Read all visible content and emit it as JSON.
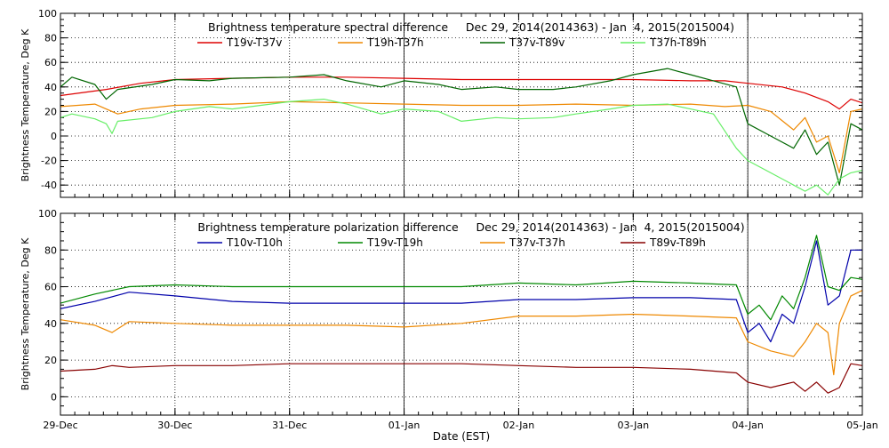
{
  "x_axis": {
    "label": "Date (EST)",
    "ticks": [
      "29-Dec",
      "30-Dec",
      "31-Dec",
      "01-Jan",
      "02-Jan",
      "03-Jan",
      "04-Jan",
      "05-Jan"
    ]
  },
  "chart_data": [
    {
      "type": "line",
      "title": "Brightness temperature spectral difference     Dec 29, 2014(2014363) - Jan  4, 2015(2015004)",
      "ylabel": "Brightness Temperature, Deg K",
      "ylim": [
        -50,
        100
      ],
      "yticks": [
        -40,
        -20,
        0,
        20,
        40,
        60,
        80,
        100
      ],
      "xlim": [
        0,
        7
      ],
      "xticks": [
        0,
        1,
        2,
        3,
        4,
        5,
        6,
        7
      ],
      "grid": true,
      "legend_placement": "top",
      "series": [
        {
          "name": "T19v-T37v",
          "color": "#dd0000",
          "x": [
            0,
            0.4,
            0.7,
            1.0,
            1.5,
            2.0,
            2.5,
            3.0,
            3.5,
            4.0,
            4.5,
            5.0,
            5.5,
            5.8,
            6.0,
            6.3,
            6.5,
            6.7,
            6.8,
            6.9,
            7.0
          ],
          "y": [
            33,
            38,
            43,
            46,
            47,
            48,
            48,
            47,
            46,
            46,
            46,
            46,
            45,
            45,
            43,
            40,
            35,
            28,
            22,
            30,
            27
          ]
        },
        {
          "name": "T19h-T37h",
          "color": "#ee8800",
          "x": [
            0,
            0.3,
            0.5,
            0.7,
            1.0,
            1.5,
            2.0,
            2.5,
            3.0,
            3.5,
            4.0,
            4.5,
            5.0,
            5.5,
            5.8,
            6.0,
            6.2,
            6.4,
            6.5,
            6.6,
            6.7,
            6.8,
            6.9,
            7.0
          ],
          "y": [
            24,
            26,
            18,
            22,
            25,
            26,
            28,
            27,
            26,
            25,
            25,
            26,
            25,
            26,
            24,
            25,
            20,
            5,
            15,
            -5,
            0,
            -30,
            20,
            22
          ]
        },
        {
          "name": "T37v-T89v",
          "color": "#006600",
          "x": [
            0,
            0.1,
            0.3,
            0.4,
            0.5,
            0.8,
            1.0,
            1.3,
            1.5,
            2.0,
            2.3,
            2.5,
            2.8,
            3.0,
            3.3,
            3.5,
            3.8,
            4.0,
            4.3,
            4.5,
            4.8,
            5.0,
            5.3,
            5.5,
            5.7,
            5.9,
            6.0,
            6.2,
            6.4,
            6.5,
            6.6,
            6.7,
            6.8,
            6.9,
            7.0
          ],
          "y": [
            40,
            48,
            42,
            30,
            38,
            42,
            46,
            45,
            47,
            48,
            50,
            45,
            40,
            45,
            42,
            38,
            40,
            38,
            38,
            40,
            45,
            50,
            55,
            50,
            45,
            40,
            10,
            0,
            -10,
            5,
            -15,
            -5,
            -40,
            10,
            5
          ]
        },
        {
          "name": "T37h-T89h",
          "color": "#66ee66",
          "x": [
            0,
            0.1,
            0.3,
            0.4,
            0.45,
            0.5,
            0.8,
            1.0,
            1.3,
            1.5,
            2.0,
            2.3,
            2.5,
            2.8,
            3.0,
            3.3,
            3.5,
            3.8,
            4.0,
            4.3,
            4.5,
            4.8,
            5.0,
            5.3,
            5.5,
            5.7,
            5.9,
            6.0,
            6.2,
            6.4,
            6.5,
            6.6,
            6.7,
            6.8,
            6.9,
            7.0
          ],
          "y": [
            15,
            18,
            14,
            10,
            2,
            12,
            15,
            20,
            24,
            22,
            28,
            30,
            26,
            18,
            22,
            20,
            12,
            15,
            14,
            15,
            18,
            22,
            25,
            26,
            22,
            18,
            -10,
            -20,
            -30,
            -40,
            -45,
            -40,
            -48,
            -35,
            -30,
            -28
          ]
        }
      ]
    },
    {
      "type": "line",
      "title": "Brightness temperature polarization difference     Dec 29, 2014(2014363) - Jan  4, 2015(2015004)",
      "ylabel": "Brightness Temperature, Deg K",
      "ylim": [
        -10,
        100
      ],
      "yticks": [
        0,
        20,
        40,
        60,
        80,
        100
      ],
      "xlim": [
        0,
        7
      ],
      "xticks": [
        0,
        1,
        2,
        3,
        4,
        5,
        6,
        7
      ],
      "grid": true,
      "legend_placement": "top",
      "series": [
        {
          "name": "T10v-T10h",
          "color": "#0000aa",
          "x": [
            0,
            0.3,
            0.6,
            1.0,
            1.5,
            2.0,
            2.5,
            3.0,
            3.5,
            4.0,
            4.5,
            5.0,
            5.5,
            5.9,
            6.0,
            6.1,
            6.2,
            6.3,
            6.4,
            6.5,
            6.6,
            6.7,
            6.8,
            6.9,
            7.0
          ],
          "y": [
            48,
            52,
            57,
            55,
            52,
            51,
            51,
            51,
            51,
            53,
            53,
            54,
            54,
            53,
            35,
            40,
            30,
            45,
            40,
            60,
            85,
            50,
            55,
            80,
            80
          ]
        },
        {
          "name": "T19v-T19h",
          "color": "#008800",
          "x": [
            0,
            0.3,
            0.6,
            1.0,
            1.5,
            2.0,
            2.5,
            3.0,
            3.5,
            4.0,
            4.5,
            5.0,
            5.5,
            5.9,
            6.0,
            6.1,
            6.2,
            6.3,
            6.4,
            6.5,
            6.6,
            6.7,
            6.8,
            6.9,
            7.0
          ],
          "y": [
            51,
            56,
            60,
            61,
            60,
            60,
            60,
            60,
            60,
            62,
            61,
            63,
            62,
            61,
            45,
            50,
            42,
            55,
            48,
            65,
            88,
            60,
            58,
            65,
            64
          ]
        },
        {
          "name": "T37v-T37h",
          "color": "#ee8800",
          "x": [
            0,
            0.3,
            0.45,
            0.6,
            1.0,
            1.5,
            2.0,
            2.5,
            3.0,
            3.5,
            4.0,
            4.5,
            5.0,
            5.5,
            5.9,
            6.0,
            6.2,
            6.4,
            6.5,
            6.6,
            6.7,
            6.75,
            6.8,
            6.9,
            7.0
          ],
          "y": [
            42,
            39,
            35,
            41,
            40,
            39,
            39,
            39,
            38,
            40,
            44,
            44,
            45,
            44,
            43,
            30,
            25,
            22,
            30,
            40,
            35,
            12,
            40,
            55,
            58
          ]
        },
        {
          "name": "T89v-T89h",
          "color": "#880000",
          "x": [
            0,
            0.3,
            0.45,
            0.6,
            1.0,
            1.5,
            2.0,
            2.5,
            3.0,
            3.5,
            4.0,
            4.5,
            5.0,
            5.5,
            5.9,
            6.0,
            6.2,
            6.4,
            6.5,
            6.6,
            6.7,
            6.8,
            6.9,
            7.0
          ],
          "y": [
            14,
            15,
            17,
            16,
            17,
            17,
            18,
            18,
            18,
            18,
            17,
            16,
            16,
            15,
            13,
            8,
            5,
            8,
            3,
            8,
            2,
            5,
            18,
            17
          ]
        }
      ]
    }
  ]
}
